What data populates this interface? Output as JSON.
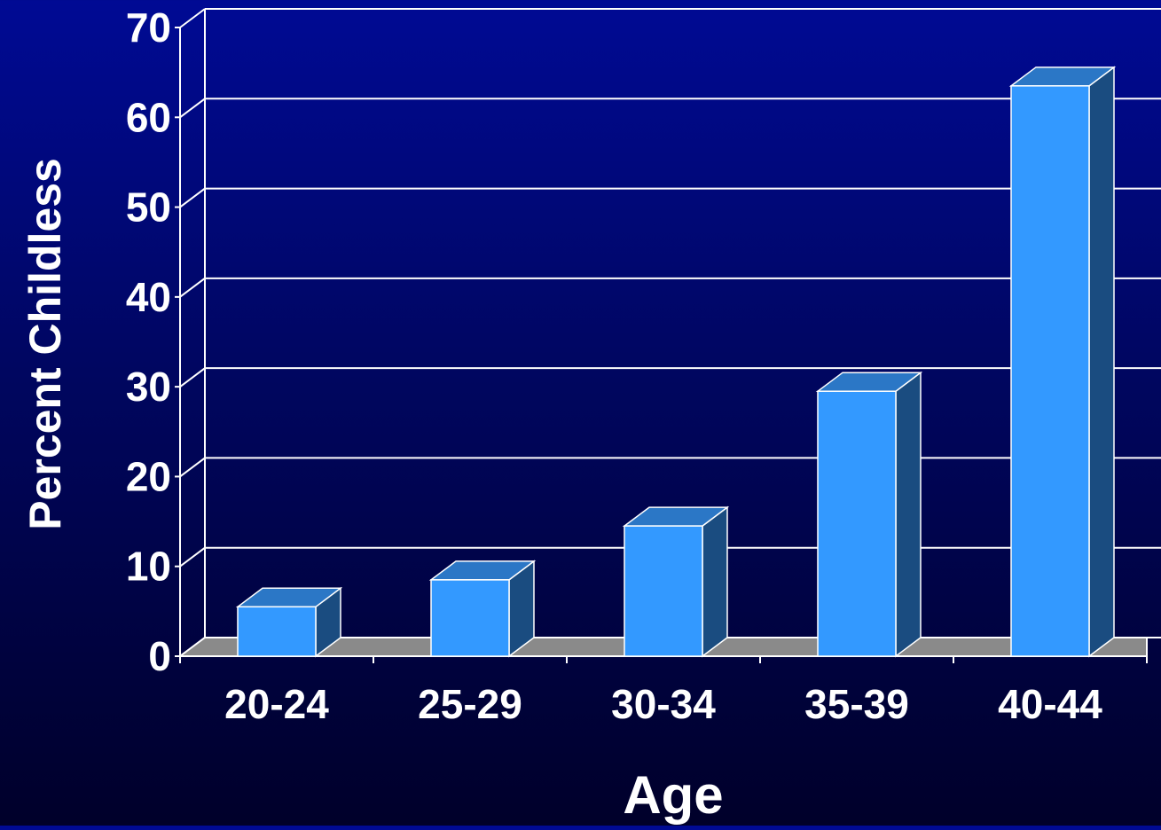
{
  "chart_data": {
    "type": "bar",
    "title": "",
    "xlabel": "Age",
    "ylabel": "Percent Childless",
    "categories": [
      "20-24",
      "25-29",
      "30-34",
      "35-39",
      "40-44"
    ],
    "values": [
      5.5,
      8.5,
      14.5,
      29.5,
      63.5
    ],
    "ylim": [
      0,
      70
    ],
    "yticks": [
      "0",
      "10",
      "20",
      "30",
      "40",
      "50",
      "60",
      "70"
    ],
    "grid": true,
    "style": "3d-column",
    "colors": {
      "bar_front": "#3399ff",
      "bar_top": "#2b77c6",
      "bar_side": "#1a4c80",
      "floor": "#8a8a8a",
      "grid": "#ffffff",
      "text": "#ffffff",
      "background_top": "#000a94",
      "background_bottom": "#00002a"
    }
  }
}
